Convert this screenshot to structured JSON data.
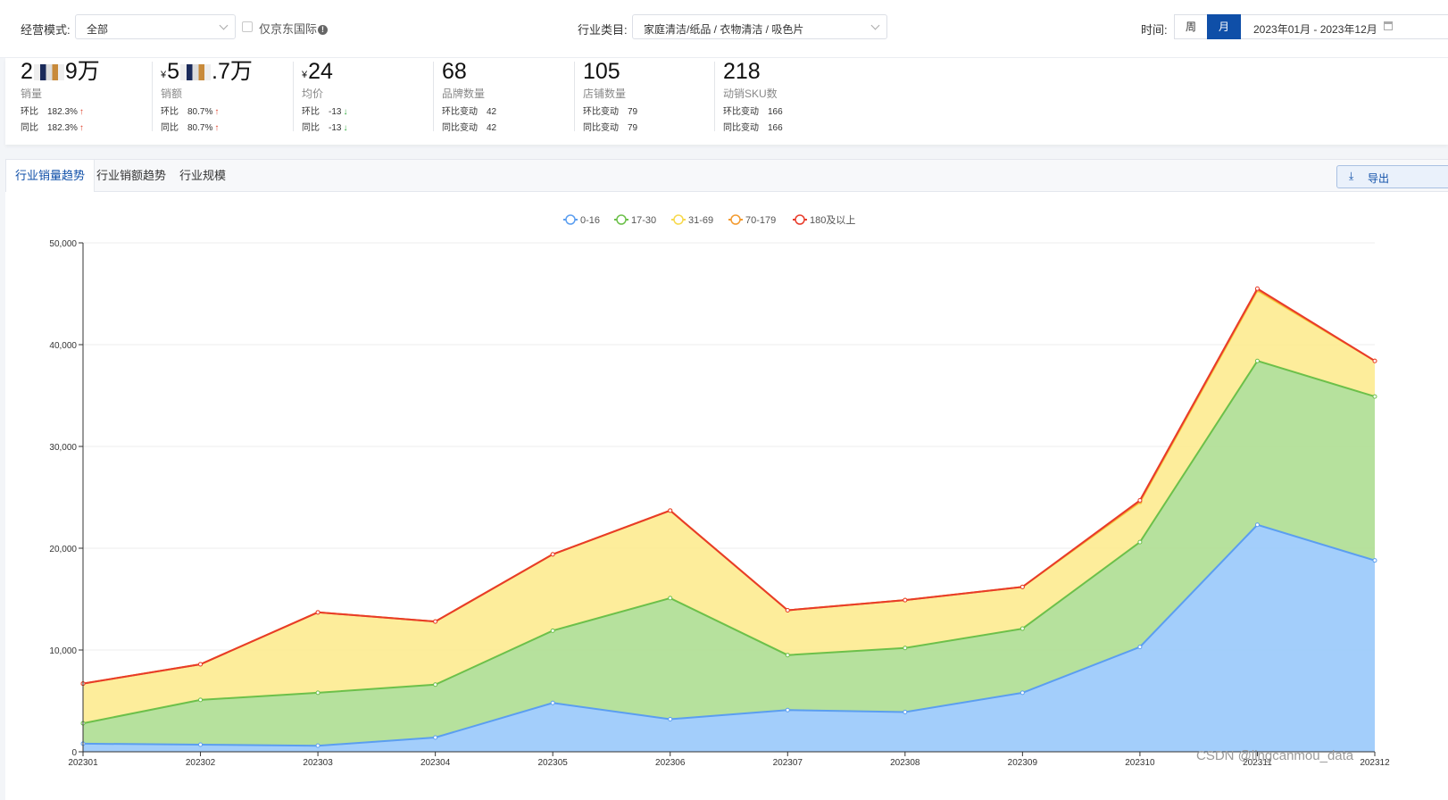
{
  "filters": {
    "mode_label": "经营模式:",
    "mode_value": "全部",
    "jd_intl_label": "仅京东国际",
    "category_label": "行业类目:",
    "category_value": "家庭清洁/纸品 / 衣物清洁 / 吸色片",
    "time_label": "时间:",
    "period_week": "周",
    "period_month": "月",
    "period_active": "month",
    "date_range": "2023年01月 - 2023年12月"
  },
  "stats": [
    {
      "value_pre": "2",
      "value_post": "9万",
      "masked": true,
      "currency": "",
      "label": "销量",
      "mom_label": "环比",
      "mom_value": "182.3%",
      "mom_dir": "up",
      "yoy_label": "同比",
      "yoy_value": "182.3%",
      "yoy_dir": "up"
    },
    {
      "value_pre": "5",
      "value_post": ".7万",
      "masked": true,
      "currency": "¥",
      "label": "销额",
      "mom_label": "环比",
      "mom_value": "80.7%",
      "mom_dir": "up",
      "yoy_label": "同比",
      "yoy_value": "80.7%",
      "yoy_dir": "up"
    },
    {
      "value_pre": "24",
      "value_post": "",
      "masked": false,
      "currency": "¥",
      "label": "均价",
      "mom_label": "环比",
      "mom_value": "-13",
      "mom_dir": "down",
      "yoy_label": "同比",
      "yoy_value": "-13",
      "yoy_dir": "down"
    },
    {
      "value_pre": "68",
      "value_post": "",
      "masked": false,
      "currency": "",
      "label": "品牌数量",
      "mom_label": "环比变动",
      "mom_value": "42",
      "mom_dir": "",
      "yoy_label": "同比变动",
      "yoy_value": "42",
      "yoy_dir": ""
    },
    {
      "value_pre": "105",
      "value_post": "",
      "masked": false,
      "currency": "",
      "label": "店铺数量",
      "mom_label": "环比变动",
      "mom_value": "79",
      "mom_dir": "",
      "yoy_label": "同比变动",
      "yoy_value": "79",
      "yoy_dir": ""
    },
    {
      "value_pre": "218",
      "value_post": "",
      "masked": false,
      "currency": "",
      "label": "动销SKU数",
      "mom_label": "环比变动",
      "mom_value": "166",
      "mom_dir": "",
      "yoy_label": "同比变动",
      "yoy_value": "166",
      "yoy_dir": ""
    }
  ],
  "tabs": [
    {
      "label": "行业销量趋势",
      "active": true
    },
    {
      "label": "行业销额趋势",
      "active": false
    },
    {
      "label": "行业规模",
      "active": false
    }
  ],
  "export_label": "导出",
  "watermark": "CSDN @lingcanmou_data",
  "chart_data": {
    "type": "area",
    "stacked": true,
    "categories": [
      "202301",
      "202302",
      "202303",
      "202304",
      "202305",
      "202306",
      "202307",
      "202308",
      "202309",
      "202310",
      "202311",
      "202312"
    ],
    "series": [
      {
        "name": "0-16",
        "color": "#5b9ef0",
        "fill": "#9ecbfb",
        "values": [
          800,
          700,
          600,
          1400,
          4800,
          3200,
          4100,
          3900,
          5800,
          10300,
          22300,
          18800
        ]
      },
      {
        "name": "17-30",
        "color": "#6cc04a",
        "fill": "#b2df98",
        "values": [
          2000,
          4400,
          5200,
          5200,
          7100,
          11900,
          5400,
          6300,
          6300,
          10300,
          16100,
          16100
        ]
      },
      {
        "name": "31-69",
        "color": "#f7d94c",
        "fill": "#fdec96",
        "values": [
          3900,
          3500,
          7900,
          6200,
          7500,
          8600,
          4400,
          4700,
          4100,
          3900,
          6900,
          3500
        ]
      },
      {
        "name": "70-179",
        "color": "#f39a2f",
        "fill": "#f8c98a",
        "values": [
          0,
          0,
          0,
          0,
          0,
          0,
          0,
          0,
          0,
          100,
          100,
          0
        ]
      },
      {
        "name": "180及以上",
        "color": "#e83b2a",
        "fill": "#f08070",
        "values": [
          0,
          0,
          0,
          0,
          0,
          0,
          0,
          0,
          0,
          100,
          100,
          0
        ]
      }
    ],
    "yticks": [
      0,
      10000,
      20000,
      30000,
      40000,
      50000
    ],
    "ylim": [
      0,
      50000
    ],
    "legend": "top-center",
    "grid": true
  }
}
